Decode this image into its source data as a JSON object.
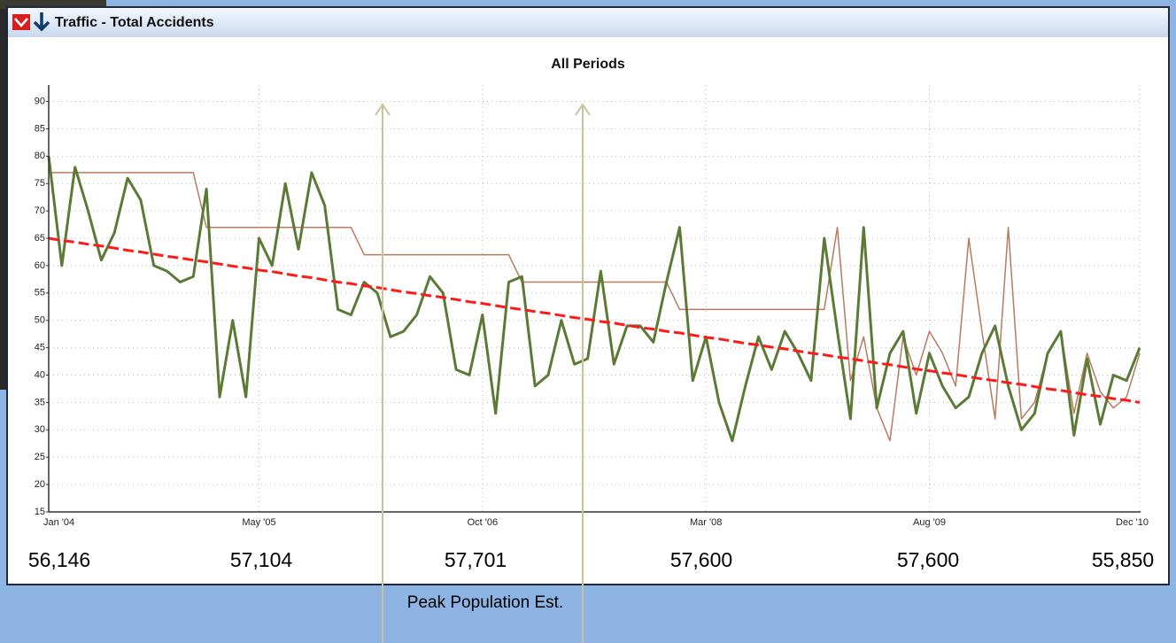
{
  "header": {
    "title": "Traffic - Total Accidents"
  },
  "chart_data": {
    "type": "line",
    "title": "All Periods",
    "categories": [
      "Jan '04",
      null,
      null,
      null,
      null,
      null,
      null,
      null,
      null,
      null,
      null,
      null,
      null,
      null,
      null,
      null,
      "May '05",
      null,
      null,
      null,
      null,
      null,
      null,
      null,
      null,
      null,
      null,
      null,
      null,
      null,
      null,
      null,
      null,
      "Oct '06",
      null,
      null,
      null,
      null,
      null,
      null,
      null,
      null,
      null,
      null,
      null,
      null,
      null,
      null,
      null,
      null,
      "Mar '08",
      null,
      null,
      null,
      null,
      null,
      null,
      null,
      null,
      null,
      null,
      null,
      null,
      null,
      null,
      null,
      null,
      "Aug '09",
      null,
      null,
      null,
      null,
      null,
      null,
      null,
      null,
      null,
      null,
      null,
      null,
      null,
      null,
      null,
      "Dec '10"
    ],
    "series": [
      {
        "color": "#b97a5e",
        "width": 1.5,
        "values": [
          77,
          77,
          77,
          77,
          77,
          77,
          77,
          77,
          77,
          77,
          77,
          77,
          67,
          67,
          67,
          67,
          67,
          67,
          67,
          67,
          67,
          67,
          67,
          67,
          62,
          62,
          62,
          62,
          62,
          62,
          62,
          62,
          62,
          62,
          62,
          62,
          57,
          57,
          57,
          57,
          57,
          57,
          57,
          57,
          57,
          57,
          57,
          57,
          52,
          52,
          52,
          52,
          52,
          52,
          52,
          52,
          52,
          52,
          52,
          52,
          67,
          39,
          47,
          34,
          28,
          47,
          40,
          48,
          44,
          38,
          65,
          48,
          32,
          67,
          32,
          35,
          44,
          48,
          33,
          44,
          37,
          34,
          36,
          44
        ]
      },
      {
        "color": "#5b7a36",
        "width": 3,
        "values": [
          80,
          60,
          78,
          70,
          61,
          66,
          76,
          72,
          60,
          59,
          57,
          58,
          74,
          36,
          50,
          36,
          65,
          60,
          75,
          63,
          77,
          71,
          52,
          51,
          57,
          55,
          47,
          48,
          51,
          58,
          55,
          41,
          40,
          51,
          33,
          57,
          58,
          38,
          40,
          50,
          42,
          43,
          59,
          42,
          49,
          49,
          46,
          57,
          67,
          39,
          47,
          35,
          28,
          38,
          47,
          41,
          48,
          44,
          39,
          65,
          48,
          32,
          67,
          34,
          44,
          48,
          33,
          44,
          38,
          34,
          36,
          44,
          49,
          38,
          30,
          33,
          44,
          48,
          29,
          43,
          31,
          40,
          39,
          45
        ]
      },
      {
        "color": "#ff1a1a",
        "width": 3,
        "dashed": true,
        "values": [
          65.0,
          64.6,
          64.3,
          63.9,
          63.6,
          63.2,
          62.8,
          62.5,
          62.1,
          61.7,
          61.4,
          61.0,
          60.7,
          60.3,
          59.9,
          59.6,
          59.2,
          58.9,
          58.5,
          58.1,
          57.8,
          57.4,
          57.0,
          56.7,
          56.3,
          56.0,
          55.6,
          55.2,
          54.9,
          54.5,
          54.2,
          53.8,
          53.4,
          53.1,
          52.7,
          52.3,
          52.0,
          51.6,
          51.3,
          50.9,
          50.5,
          50.2,
          49.8,
          49.5,
          49.1,
          48.7,
          48.4,
          48.0,
          47.7,
          47.3,
          46.9,
          46.6,
          46.2,
          45.8,
          45.5,
          45.1,
          44.8,
          44.4,
          44.0,
          43.7,
          43.3,
          43.0,
          42.6,
          42.2,
          41.9,
          41.5,
          41.1,
          40.8,
          40.4,
          40.1,
          39.7,
          39.3,
          39.0,
          38.6,
          38.3,
          37.9,
          37.5,
          37.2,
          36.8,
          36.4,
          36.1,
          35.7,
          35.4,
          35.0
        ]
      }
    ],
    "ylim": [
      15,
      93
    ],
    "yticks": [
      15,
      20,
      25,
      30,
      35,
      40,
      45,
      50,
      55,
      60,
      65,
      70,
      75,
      80,
      85,
      90
    ],
    "grid": true,
    "population_labels": [
      "56,146",
      "57,104",
      "57,701",
      "57,600",
      "57,600",
      "55,850"
    ],
    "annotation": "Peak Population Est."
  }
}
